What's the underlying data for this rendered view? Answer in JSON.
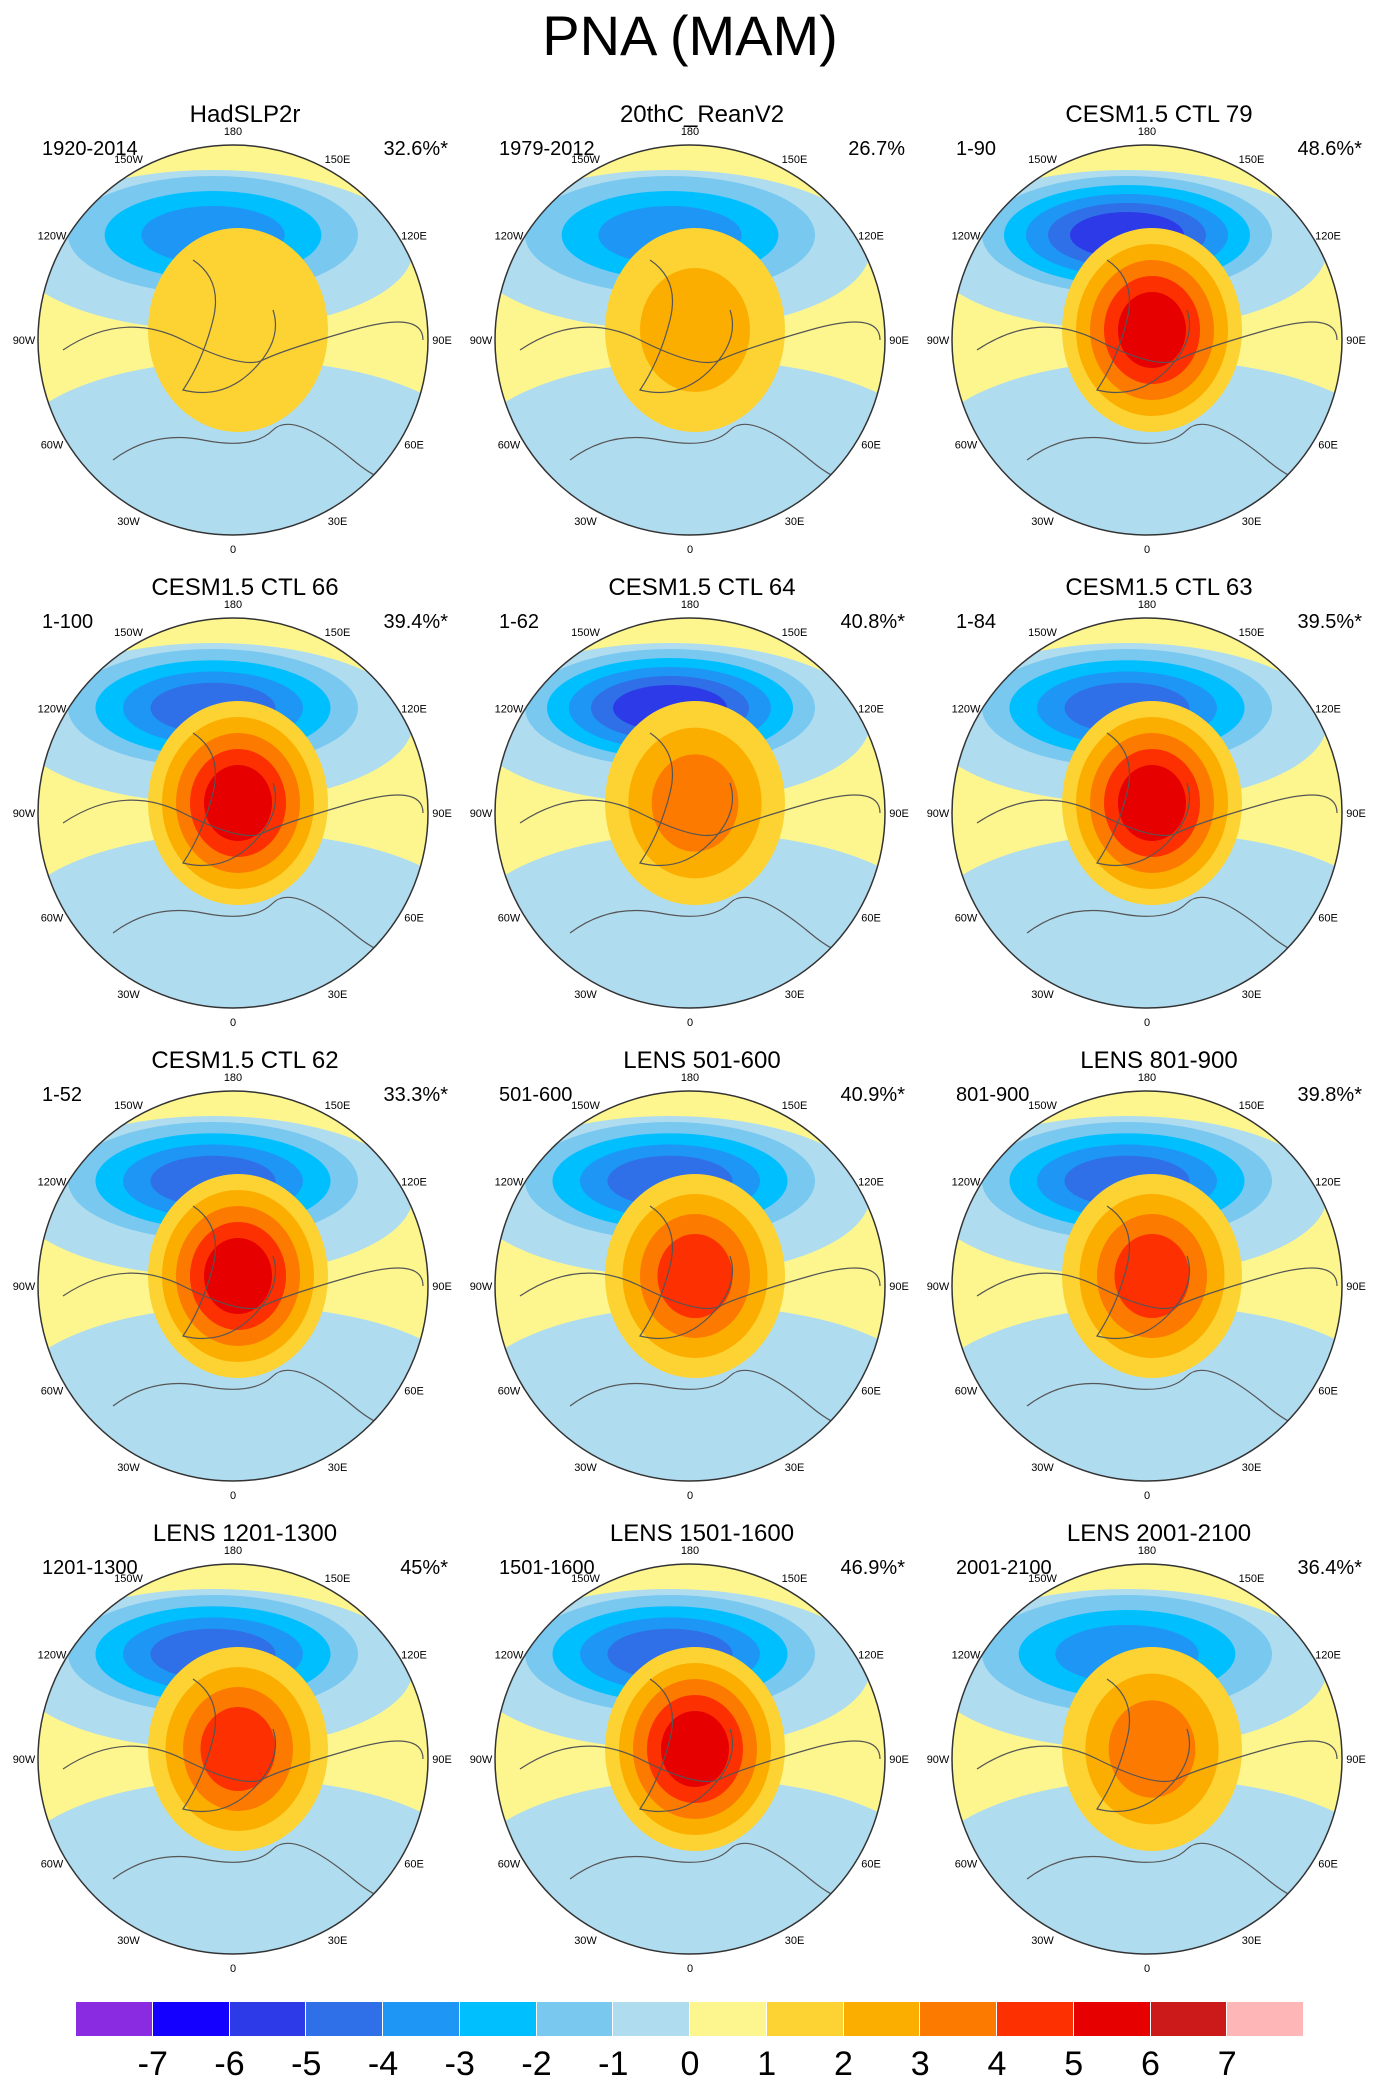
{
  "figure": {
    "title": "PNA (MAM)"
  },
  "chart_data": {
    "type": "polar-contour-map",
    "title": "PNA (MAM)",
    "projection": "north polar stereographic",
    "longitude_labels": [
      "180",
      "150E",
      "120E",
      "90E",
      "60E",
      "30E",
      "0",
      "30W",
      "60W",
      "90W",
      "120W",
      "150W"
    ],
    "colorbar": {
      "levels": [
        "-7",
        "-6",
        "-5",
        "-4",
        "-3",
        "-2",
        "-1",
        "0",
        "1",
        "2",
        "3",
        "4",
        "5",
        "6",
        "7"
      ],
      "colors": [
        "#8a2be2",
        "#1400ff",
        "#2c3ae8",
        "#2f6fe8",
        "#1e96f5",
        "#00bfff",
        "#78c8f0",
        "#b0dcf0",
        "#fdf68e",
        "#fcd332",
        "#fcae00",
        "#fc7a00",
        "#fc3000",
        "#e60000",
        "#cc1a1a",
        "#ffb6b6"
      ]
    },
    "panels": [
      {
        "title": "HadSLP2r",
        "years": "1920-2014",
        "variance": "32.6%*",
        "low": -3,
        "high": 1
      },
      {
        "title": "20thC_ReanV2",
        "years": "1979-2012",
        "variance": "26.7%",
        "low": -3,
        "high": 2
      },
      {
        "title": "CESM1.5 CTL 79",
        "years": "1-90",
        "variance": "48.6%*",
        "low": -5,
        "high": 5
      },
      {
        "title": "CESM1.5 CTL 66",
        "years": "1-100",
        "variance": "39.4%*",
        "low": -4,
        "high": 5
      },
      {
        "title": "CESM1.5 CTL 64",
        "years": "1-62",
        "variance": "40.8%*",
        "low": -5,
        "high": 3
      },
      {
        "title": "CESM1.5 CTL 63",
        "years": "1-84",
        "variance": "39.5%*",
        "low": -4,
        "high": 5
      },
      {
        "title": "CESM1.5 CTL 62",
        "years": "1-52",
        "variance": "33.3%*",
        "low": -4,
        "high": 5
      },
      {
        "title": "LENS 501-600",
        "years": "501-600",
        "variance": "40.9%*",
        "low": -4,
        "high": 4
      },
      {
        "title": "LENS 801-900",
        "years": "801-900",
        "variance": "39.8%*",
        "low": -4,
        "high": 4
      },
      {
        "title": "LENS 1201-1300",
        "years": "1201-1300",
        "variance": "45%*",
        "low": -4,
        "high": 4
      },
      {
        "title": "LENS 1501-1600",
        "years": "1501-1600",
        "variance": "46.9%*",
        "low": -4,
        "high": 5
      },
      {
        "title": "LENS 2001-2100",
        "years": "2001-2100",
        "variance": "36.4%*",
        "low": -3,
        "high": 3
      }
    ]
  }
}
